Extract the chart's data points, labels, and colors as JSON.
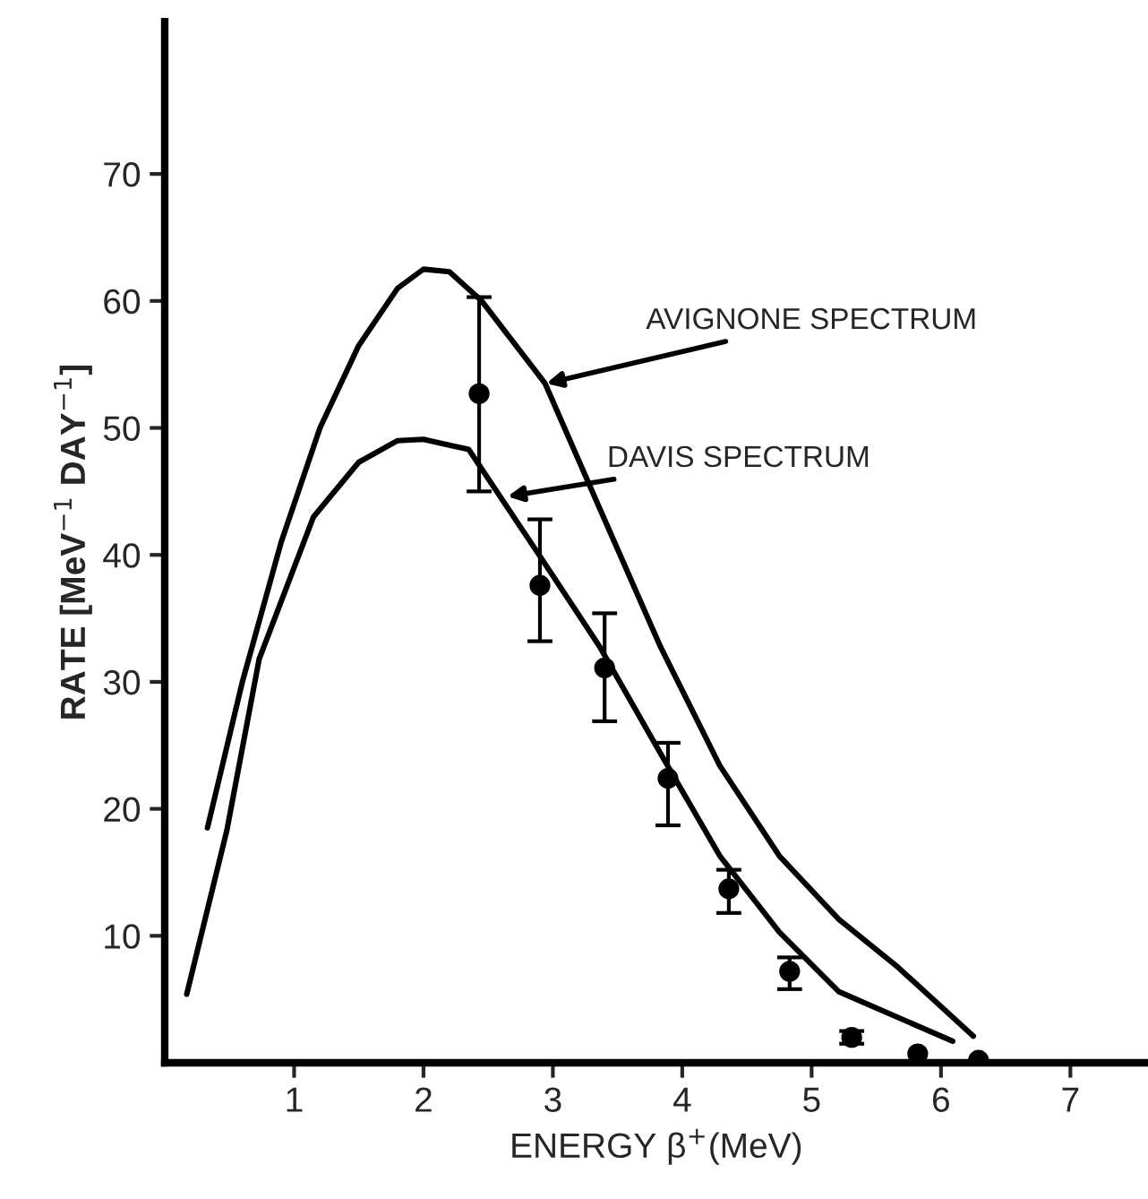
{
  "chart_data": {
    "type": "line",
    "xlabel": "ENERGY β$^{+}$(MeV)",
    "ylabel": "RATE [MeV$^{−1}$ DAY$^{−1}$]",
    "xlim": [
      0,
      7.6
    ],
    "ylim": [
      0,
      82
    ],
    "xticks": [
      1,
      2,
      3,
      4,
      5,
      6,
      7
    ],
    "yticks": [
      10,
      20,
      30,
      40,
      50,
      60,
      70
    ],
    "grid": false,
    "legend": false,
    "line_style": "solid",
    "series": [
      {
        "color": "#000000",
        "marker": "none",
        "x": [
          0.33,
          0.6,
          0.9,
          1.2,
          1.5,
          1.8,
          2.0,
          2.2,
          2.45,
          2.94,
          3.36,
          3.83,
          4.29,
          4.75,
          5.21,
          5.67,
          6.25
        ],
        "values": [
          18.5,
          30,
          41,
          50,
          56.5,
          61,
          62.5,
          62.3,
          60,
          53.5,
          43.7,
          32.8,
          23.4,
          16.3,
          11.3,
          7.5,
          2.1
        ]
      },
      {
        "color": "#000000",
        "marker": "none",
        "x": [
          0.17,
          0.48,
          0.73,
          1.15,
          1.5,
          1.8,
          2.0,
          2.35,
          2.9,
          3.36,
          3.83,
          4.29,
          4.75,
          5.21,
          6.09
        ],
        "values": [
          5.4,
          18.3,
          31.8,
          43,
          47.3,
          49,
          49.1,
          48.3,
          39.9,
          32.8,
          24.4,
          16.3,
          10.3,
          5.6,
          1.7
        ]
      },
      {
        "type": "scatter",
        "color": "#000000",
        "marker": "circle",
        "x": [
          2.43,
          2.9,
          3.4,
          3.89,
          4.36,
          4.83,
          5.31,
          5.82,
          6.29
        ],
        "values": [
          52.7,
          37.6,
          31.1,
          22.4,
          13.7,
          7.2,
          2.0,
          0.7,
          0.2
        ],
        "errors": [
          [
            45,
            60.3
          ],
          [
            33.2,
            42.8
          ],
          [
            26.9,
            35.4
          ],
          [
            18.7,
            25.2
          ],
          [
            11.8,
            15.2
          ],
          [
            5.8,
            8.3
          ],
          [
            1.5,
            2.5
          ],
          null,
          null
        ]
      }
    ],
    "annotations": [
      {
        "text": "AVIGNONE SPECTRUM",
        "x": 2.95,
        "y": 53.5
      },
      {
        "text": "DAVIS SPECTRUM",
        "x": 2.65,
        "y": 44.6
      }
    ]
  }
}
